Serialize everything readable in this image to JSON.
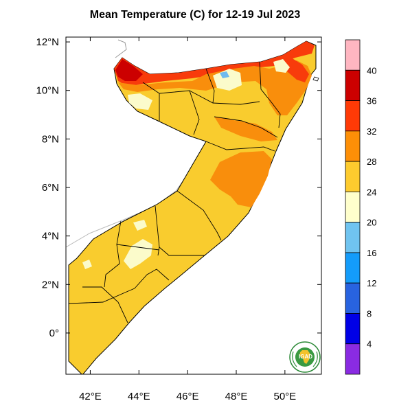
{
  "title": "Mean Temperature (C) for 12-19 Jul 2023",
  "colors": {
    "land_22_24": "#fbfbcb",
    "land_24_28": "#f9cc2e",
    "land_28_32": "#f98e0c",
    "land_32_36": "#f83b0b",
    "land_36_40": "#cc0000",
    "land_16_20": "#6fbaee",
    "border": "#000000",
    "outside": "#ffffff"
  },
  "logo": {
    "text": "IGAD"
  },
  "chart_data": {
    "type": "heatmap",
    "region": "Somalia",
    "title": "Mean Temperature (C) for 12-19 Jul 2023",
    "x_axis": {
      "range": [
        41,
        51.5
      ],
      "ticks": [
        42,
        44,
        46,
        48,
        50
      ],
      "tick_labels": [
        "42°E",
        "44°E",
        "46°E",
        "48°E",
        "50°E"
      ]
    },
    "y_axis": {
      "range": [
        -1.7,
        12.2
      ],
      "ticks": [
        0,
        2,
        4,
        6,
        8,
        10,
        12
      ],
      "tick_labels": [
        "0°",
        "2°N",
        "4°N",
        "6°N",
        "8°N",
        "10°N",
        "12°N"
      ]
    },
    "colorbar": {
      "levels": [
        4,
        8,
        12,
        16,
        20,
        24,
        28,
        32,
        36,
        40
      ],
      "labels": [
        "4",
        "8",
        "12",
        "16",
        "20",
        "24",
        "28",
        "32",
        "36",
        "40"
      ],
      "colors": [
        "#8a2be2",
        "#0000e6",
        "#2863e0",
        "#149cfa",
        "#70c4f0",
        "#ffffcc",
        "#fdcb2e",
        "#fd8f07",
        "#ff3a06",
        "#cc0000",
        "#ffb6c1"
      ]
    }
  }
}
